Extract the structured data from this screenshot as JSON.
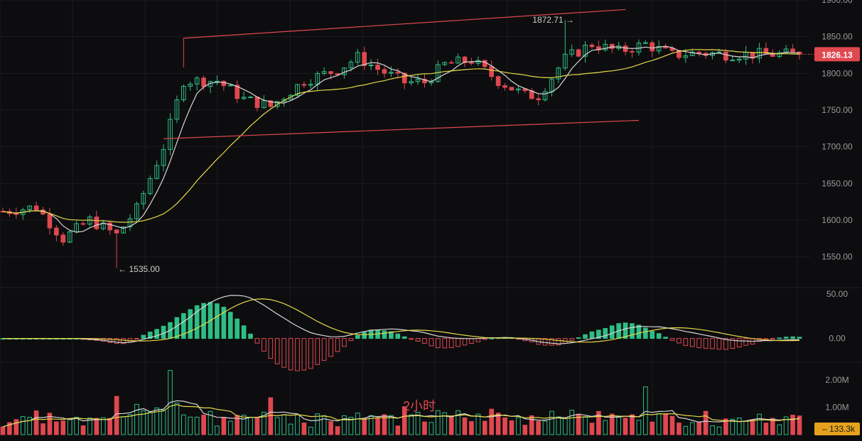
{
  "timeframe_label": "2小时",
  "colors": {
    "background": "#0d0d0f",
    "grid": "#1c1c20",
    "up": "#2ebd85",
    "down": "#e0484f",
    "ma_fast": "#d8d8d8",
    "ma_slow": "#e6d94a",
    "trendline": "#e0484f",
    "axis_text": "#9a9a9a",
    "price_tag": "#e0484f",
    "volume_tag": "#e6a21e"
  },
  "chart_data": [
    {
      "type": "candlestick",
      "name": "price",
      "ylim": [
        1510,
        1900
      ],
      "yticks": [
        1550,
        1600,
        1650,
        1700,
        1750,
        1800,
        1850,
        1900
      ],
      "ytick_labels": [
        "1550.00",
        "1600.00",
        "1650.00",
        "1700.00",
        "1750.00",
        "1800.00",
        "1850.00",
        "1900.00"
      ],
      "x_count": 120,
      "current_price": "1826.13",
      "annotations": [
        {
          "label": "1872.71 →",
          "x": 84,
          "y": 1872.71
        },
        {
          "label": "← 1535.00",
          "x": 17,
          "y": 1535.0
        }
      ],
      "trend_channel": {
        "upper": {
          "x0": 27,
          "y0": 1848,
          "x1": 93,
          "y1": 1887
        },
        "lower": {
          "x0": 24,
          "y0": 1711,
          "x1": 95,
          "y1": 1736
        }
      },
      "close_path": [
        [
          0,
          1612
        ],
        [
          5,
          1618
        ],
        [
          9,
          1575
        ],
        [
          13,
          1600
        ],
        [
          17,
          1580
        ],
        [
          20,
          1615
        ],
        [
          24,
          1700
        ],
        [
          27,
          1790
        ],
        [
          32,
          1790
        ],
        [
          36,
          1765
        ],
        [
          40,
          1755
        ],
        [
          45,
          1790
        ],
        [
          50,
          1805
        ],
        [
          53,
          1822
        ],
        [
          56,
          1806
        ],
        [
          60,
          1788
        ],
        [
          63,
          1788
        ],
        [
          66,
          1812
        ],
        [
          70,
          1818
        ],
        [
          74,
          1790
        ],
        [
          78,
          1770
        ],
        [
          80,
          1770
        ],
        [
          84,
          1820
        ],
        [
          88,
          1840
        ],
        [
          92,
          1830
        ],
        [
          96,
          1840
        ],
        [
          100,
          1825
        ],
        [
          104,
          1828
        ],
        [
          108,
          1826
        ],
        [
          112,
          1826.13
        ]
      ]
    },
    {
      "type": "macd",
      "name": "oscillator",
      "ylim": [
        -25,
        57
      ],
      "yticks": [
        0,
        50
      ],
      "ytick_labels": [
        "0.00",
        "50.00"
      ]
    },
    {
      "type": "volume",
      "name": "volume",
      "ylim": [
        0,
        2600000
      ],
      "yticks": [
        1000000,
        2000000
      ],
      "ytick_labels": [
        "1.00M",
        "2.00M"
      ],
      "current_volume": "133.3k"
    }
  ]
}
